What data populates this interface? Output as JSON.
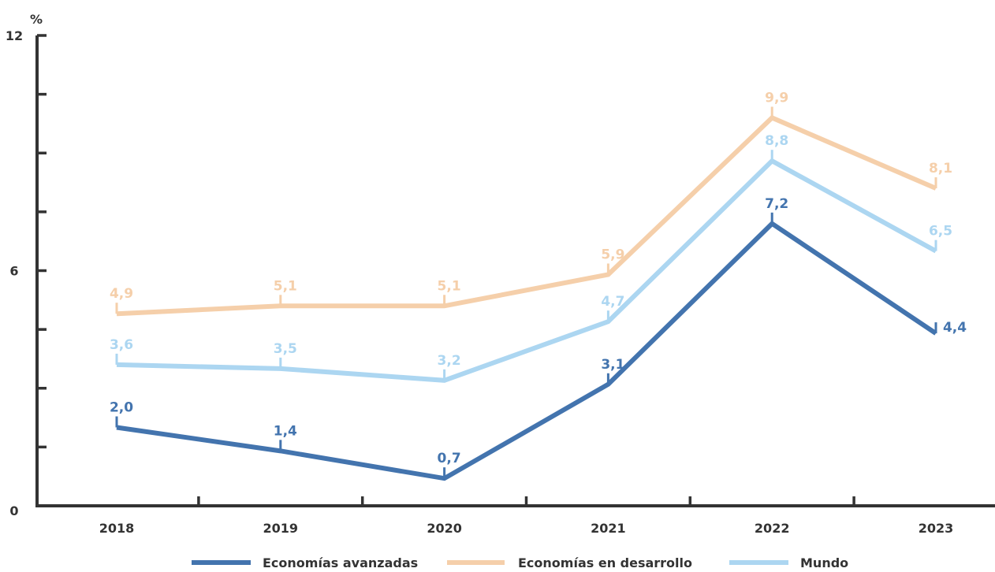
{
  "chart_data": {
    "type": "line",
    "unit": "%",
    "categories": [
      "2018",
      "2019",
      "2020",
      "2021",
      "2022",
      "2023"
    ],
    "ylim": [
      0,
      12
    ],
    "yticks": [
      0,
      1.5,
      3,
      4.5,
      6,
      7.5,
      9,
      10.5,
      12
    ],
    "ytick_labels": [
      "0",
      "",
      "",
      "",
      "6",
      "",
      "",
      "",
      "12"
    ],
    "grid": false,
    "legend_position": "bottom",
    "series": [
      {
        "name": "Economías en desarrollo",
        "color": "#F5CFAA",
        "values": [
          4.9,
          5.1,
          5.1,
          5.9,
          9.9,
          8.1
        ],
        "labels": [
          "4,9",
          "5,1",
          "5,1",
          "5,9",
          "9,9",
          "8,1"
        ]
      },
      {
        "name": "Mundo",
        "color": "#ACD6F1",
        "values": [
          3.6,
          3.5,
          3.2,
          4.7,
          8.8,
          6.5
        ],
        "labels": [
          "3,6",
          "3,5",
          "3,2",
          "4,7",
          "8,8",
          "6,5"
        ]
      },
      {
        "name": "Economías avanzadas",
        "color": "#4374AE",
        "values": [
          2.0,
          1.4,
          0.7,
          3.1,
          7.2,
          4.4
        ],
        "labels": [
          "2,0",
          "1,4",
          "0,7",
          "3,1",
          "7,2",
          "4,4"
        ]
      }
    ],
    "legend": [
      {
        "name": "Economías avanzadas",
        "color": "#4374AE"
      },
      {
        "name": "Economías en desarrollo",
        "color": "#F5CFAA"
      },
      {
        "name": "Mundo",
        "color": "#ACD6F1"
      }
    ]
  }
}
